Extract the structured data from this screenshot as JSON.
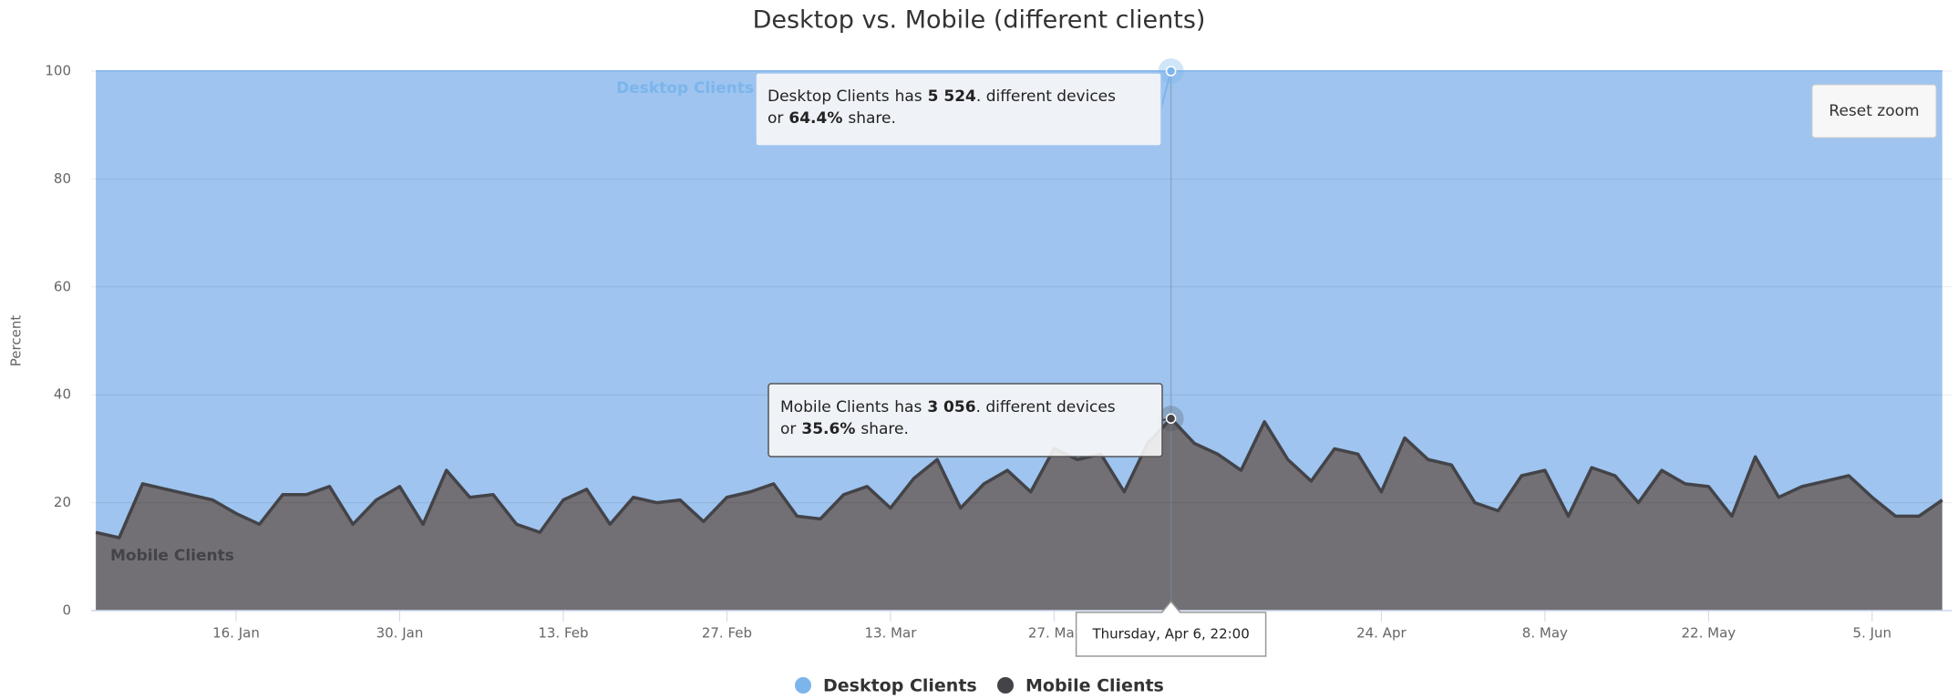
{
  "chart_data": {
    "type": "area",
    "stacking": "percent",
    "title": "Desktop vs. Mobile (different clients)",
    "y_label": "Percent",
    "x": [
      4,
      6,
      8,
      10,
      12,
      14,
      16,
      18,
      20,
      22,
      24,
      26,
      28,
      30,
      32,
      34,
      36,
      38,
      40,
      42,
      44,
      46,
      48,
      50,
      52,
      54,
      56,
      58,
      60,
      62,
      64,
      66,
      68,
      70,
      72,
      74,
      76,
      78,
      80,
      82,
      84,
      86,
      88,
      90,
      92,
      94,
      96,
      98,
      100,
      102,
      104,
      106,
      108,
      110,
      112,
      114,
      116,
      118,
      120,
      122,
      124,
      126,
      128,
      130,
      132,
      134,
      136,
      138,
      140,
      142,
      144,
      146,
      148,
      150,
      152,
      154,
      156,
      158,
      160,
      162
    ],
    "series": [
      {
        "name": "Desktop Clients",
        "color": "#9ec4ef",
        "line_color": "#8ab9ec",
        "label_color": "#7cb5ec",
        "values": [
          85.5,
          86.5,
          76.5,
          77.5,
          78.5,
          79.5,
          82,
          84,
          78.5,
          78.5,
          77,
          84,
          79.5,
          77,
          84,
          74,
          79,
          78.5,
          84,
          85.5,
          79.5,
          77.5,
          84,
          79,
          80,
          79.5,
          83.5,
          79,
          78,
          76.5,
          82.5,
          83,
          78.5,
          77,
          81,
          75.5,
          72,
          81,
          76.5,
          74,
          78,
          70,
          72,
          71,
          78,
          69,
          64.4,
          69,
          71,
          74,
          65,
          72,
          76,
          70,
          71,
          78,
          68,
          72,
          73,
          80,
          81.5,
          75,
          74,
          82.5,
          73.5,
          75,
          80,
          74,
          76.5,
          77,
          82.5,
          71.5,
          79,
          77,
          76,
          75,
          79,
          82.5,
          82.5,
          79.5
        ]
      },
      {
        "name": "Mobile Clients",
        "color": "#727075",
        "line_color": "#434348",
        "label_color": "#434348",
        "values": [
          14.5,
          13.5,
          23.5,
          22.5,
          21.5,
          20.5,
          18,
          16,
          21.5,
          21.5,
          23,
          16,
          20.5,
          23,
          16,
          26,
          21,
          21.5,
          16,
          14.5,
          20.5,
          22.5,
          16,
          21,
          20,
          20.5,
          16.5,
          21,
          22,
          23.5,
          17.5,
          17,
          21.5,
          23,
          19,
          24.5,
          28,
          19,
          23.5,
          26,
          22,
          30,
          28,
          29,
          22,
          31,
          35.6,
          31,
          29,
          26,
          35,
          28,
          24,
          30,
          29,
          22,
          32,
          28,
          27,
          20,
          18.5,
          25,
          26,
          17.5,
          26.5,
          25,
          20,
          26,
          23.5,
          23,
          17.5,
          28.5,
          21,
          23,
          24,
          25,
          21,
          17.5,
          17.5,
          20.5
        ]
      }
    ],
    "xlim": [
      3.6,
      162.8
    ],
    "xticks": [
      {
        "value": 16,
        "label": "16. Jan"
      },
      {
        "value": 30,
        "label": "30. Jan"
      },
      {
        "value": 44,
        "label": "13. Feb"
      },
      {
        "value": 58,
        "label": "27. Feb"
      },
      {
        "value": 72,
        "label": "13. Mar"
      },
      {
        "value": 86,
        "label": "27. Mar"
      },
      {
        "value": 114,
        "label": "24. Apr"
      },
      {
        "value": 128,
        "label": "8. May"
      },
      {
        "value": 142,
        "label": "22. May"
      },
      {
        "value": 156,
        "label": "5. Jun"
      }
    ],
    "ylim": [
      0,
      100
    ],
    "yticks": [
      0,
      20,
      40,
      60,
      80,
      100
    ],
    "grid": true,
    "legend": "bottom",
    "tooltips": [
      {
        "count": "5 524",
        "line1_end": ". different devices",
        "line2_start": "or",
        "share": "64.4%",
        "line2_end": "share."
      },
      {
        "count": "3 056",
        "line1_end": ". different devices",
        "line2_start": "or",
        "share": "35.6%",
        "line2_end": "share."
      }
    ],
    "has": "has",
    "crosshair_label": "Thursday, Apr 6, 22:00",
    "reset_button": "Reset zoom"
  }
}
